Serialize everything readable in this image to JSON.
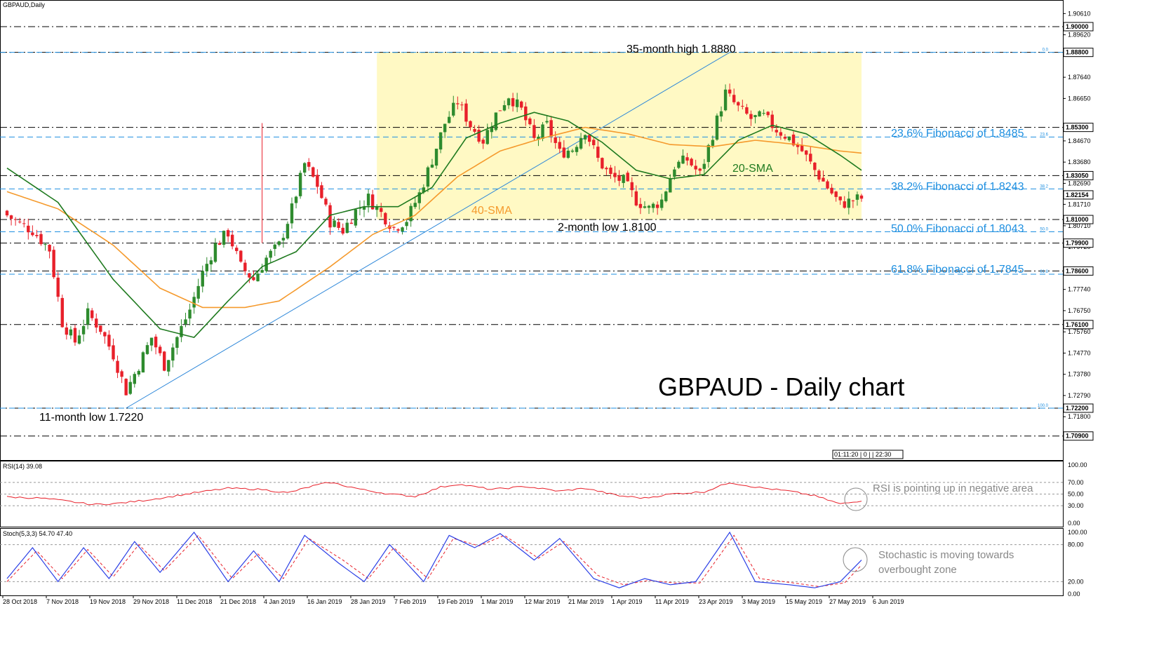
{
  "chart_data": [
    {
      "type": "candlestick",
      "title": "GBPAUD,Daily",
      "big_title": "GBPAUD - Daily chart",
      "ylim": [
        1.705,
        1.9106
      ],
      "y_ticks": [
        "1.90610",
        "1.89620",
        "1.87640",
        "1.86650",
        "1.84670",
        "1.83680",
        "1.82690",
        "1.81710",
        "1.80710",
        "1.79720",
        "1.77740",
        "1.76750",
        "1.75760",
        "1.74770",
        "1.73780",
        "1.72790",
        "1.71800"
      ],
      "highlighted_levels": [
        {
          "value": 1.9,
          "label": "1.90000",
          "style": "dashdot"
        },
        {
          "value": 1.888,
          "label": "1.88800",
          "style": "dashdot"
        },
        {
          "value": 1.853,
          "label": "1.85300",
          "style": "dashdot"
        },
        {
          "value": 1.8305,
          "label": "1.83050",
          "style": "dashdot"
        },
        {
          "value": 1.8215,
          "label": "1.82154",
          "style": "none"
        },
        {
          "value": 1.81,
          "label": "1.81000",
          "style": "dashdot"
        },
        {
          "value": 1.799,
          "label": "1.79900",
          "style": "dashdot"
        },
        {
          "value": 1.786,
          "label": "1.78600",
          "style": "dashdot"
        },
        {
          "value": 1.761,
          "label": "1.76100",
          "style": "dashdot"
        },
        {
          "value": 1.722,
          "label": "1.72200",
          "style": "dashdot"
        },
        {
          "value": 1.709,
          "label": "1.70900",
          "style": "dashdot"
        }
      ],
      "fibonacci": [
        {
          "value": 1.888,
          "pct": "0.0",
          "label": ""
        },
        {
          "value": 1.8485,
          "pct": "23.6",
          "label": "23.6% Fibonacci of 1.8485"
        },
        {
          "value": 1.8243,
          "pct": "38.2",
          "label": "38.2% Fibonacci of 1.8243"
        },
        {
          "value": 1.8043,
          "pct": "50.0",
          "label": "50.0% Fibonacci of 1.8043"
        },
        {
          "value": 1.7845,
          "pct": "61.8",
          "label": "61.8% Fibonacci of 1.7845"
        },
        {
          "value": 1.722,
          "pct": "100.0",
          "label": ""
        }
      ],
      "x_labels": [
        "28 Oct 2018",
        "7 Nov 2018",
        "19 Nov 2018",
        "29 Nov 2018",
        "11 Dec 2018",
        "21 Dec 2018",
        "4 Jan 2019",
        "16 Jan 2019",
        "28 Jan 2019",
        "7 Feb 2019",
        "19 Feb 2019",
        "1 Mar 2019",
        "12 Mar 2019",
        "21 Mar 2019",
        "1 Apr 2019",
        "11 Apr 2019",
        "23 Apr 2019",
        "3 May 2019",
        "15 May 2019",
        "27 May 2019",
        "6 Jun 2019"
      ],
      "annotations": [
        "35-month high 1.8880",
        "2-month low 1.8100",
        "11-month low 1.7220",
        "20-SMA",
        "40-SMA"
      ],
      "close_anchors": [
        [
          0,
          1.812
        ],
        [
          3,
          1.808
        ],
        [
          6,
          1.805
        ],
        [
          10,
          1.796
        ],
        [
          13,
          1.762
        ],
        [
          16,
          1.753
        ],
        [
          19,
          1.766
        ],
        [
          22,
          1.759
        ],
        [
          25,
          1.747
        ],
        [
          28,
          1.73
        ],
        [
          31,
          1.742
        ],
        [
          34,
          1.755
        ],
        [
          37,
          1.742
        ],
        [
          40,
          1.755
        ],
        [
          43,
          1.768
        ],
        [
          46,
          1.785
        ],
        [
          49,
          1.798
        ],
        [
          52,
          1.804
        ],
        [
          55,
          1.788
        ],
        [
          58,
          1.782
        ],
        [
          61,
          1.792
        ],
        [
          64,
          1.798
        ],
        [
          67,
          1.815
        ],
        [
          70,
          1.836
        ],
        [
          73,
          1.826
        ],
        [
          76,
          1.809
        ],
        [
          79,
          1.805
        ],
        [
          82,
          1.814
        ],
        [
          85,
          1.82
        ],
        [
          88,
          1.813
        ],
        [
          91,
          1.806
        ],
        [
          94,
          1.81
        ],
        [
          97,
          1.822
        ],
        [
          100,
          1.838
        ],
        [
          103,
          1.855
        ],
        [
          106,
          1.865
        ],
        [
          109,
          1.854
        ],
        [
          112,
          1.847
        ],
        [
          115,
          1.859
        ],
        [
          118,
          1.868
        ],
        [
          121,
          1.861
        ],
        [
          124,
          1.847
        ],
        [
          127,
          1.854
        ],
        [
          130,
          1.841
        ],
        [
          133,
          1.843
        ],
        [
          136,
          1.852
        ],
        [
          139,
          1.838
        ],
        [
          142,
          1.83
        ],
        [
          145,
          1.828
        ],
        [
          148,
          1.819
        ],
        [
          151,
          1.815
        ],
        [
          154,
          1.819
        ],
        [
          157,
          1.835
        ],
        [
          160,
          1.838
        ],
        [
          163,
          1.831
        ],
        [
          166,
          1.85
        ],
        [
          169,
          1.869
        ],
        [
          172,
          1.862
        ],
        [
          175,
          1.857
        ],
        [
          178,
          1.858
        ],
        [
          181,
          1.852
        ],
        [
          184,
          1.848
        ],
        [
          187,
          1.842
        ],
        [
          190,
          1.833
        ],
        [
          193,
          1.825
        ],
        [
          196,
          1.817
        ],
        [
          199,
          1.819
        ],
        [
          201,
          1.82
        ]
      ],
      "candle_count": 202,
      "sma20_anchors": [
        [
          0,
          1.834
        ],
        [
          12,
          1.818
        ],
        [
          25,
          1.782
        ],
        [
          36,
          1.759
        ],
        [
          44,
          1.755
        ],
        [
          52,
          1.772
        ],
        [
          60,
          1.788
        ],
        [
          68,
          1.795
        ],
        [
          76,
          1.812
        ],
        [
          84,
          1.816
        ],
        [
          92,
          1.816
        ],
        [
          100,
          1.825
        ],
        [
          108,
          1.848
        ],
        [
          116,
          1.855
        ],
        [
          124,
          1.86
        ],
        [
          132,
          1.856
        ],
        [
          140,
          1.846
        ],
        [
          148,
          1.833
        ],
        [
          156,
          1.829
        ],
        [
          164,
          1.831
        ],
        [
          172,
          1.847
        ],
        [
          180,
          1.854
        ],
        [
          188,
          1.85
        ],
        [
          196,
          1.84
        ],
        [
          201,
          1.833
        ]
      ],
      "sma40_anchors": [
        [
          0,
          1.823
        ],
        [
          12,
          1.815
        ],
        [
          25,
          1.798
        ],
        [
          36,
          1.778
        ],
        [
          46,
          1.769
        ],
        [
          56,
          1.769
        ],
        [
          64,
          1.772
        ],
        [
          76,
          1.788
        ],
        [
          86,
          1.803
        ],
        [
          96,
          1.812
        ],
        [
          106,
          1.83
        ],
        [
          116,
          1.842
        ],
        [
          126,
          1.848
        ],
        [
          136,
          1.853
        ],
        [
          146,
          1.85
        ],
        [
          156,
          1.845
        ],
        [
          166,
          1.844
        ],
        [
          176,
          1.847
        ],
        [
          186,
          1.845
        ],
        [
          196,
          1.842
        ],
        [
          201,
          1.841
        ]
      ],
      "trendline": {
        "from": [
          28,
          1.722
        ],
        "to": [
          170,
          1.888
        ]
      },
      "rectangle": {
        "x0": 87,
        "x1": 201,
        "y0": 1.81,
        "y1": 1.888
      },
      "time_box": "01:11:20 | 0 | | 22:30"
    },
    {
      "type": "line",
      "title": "RSI(14) 39.08",
      "ylim": [
        0,
        100
      ],
      "y_ticks": [
        "100.00",
        "70.00",
        "50.00",
        "30.00",
        "0.00"
      ],
      "series": [
        {
          "name": "RSI(14)",
          "anchors": [
            [
              0,
              45
            ],
            [
              8,
              43
            ],
            [
              14,
              38
            ],
            [
              20,
              32
            ],
            [
              26,
              34
            ],
            [
              32,
              39
            ],
            [
              38,
              45
            ],
            [
              44,
              52
            ],
            [
              52,
              60
            ],
            [
              60,
              58
            ],
            [
              66,
              52
            ],
            [
              72,
              64
            ],
            [
              76,
              70
            ],
            [
              84,
              57
            ],
            [
              90,
              50
            ],
            [
              96,
              46
            ],
            [
              102,
              62
            ],
            [
              106,
              67
            ],
            [
              114,
              58
            ],
            [
              122,
              63
            ],
            [
              130,
              55
            ],
            [
              136,
              60
            ],
            [
              144,
              47
            ],
            [
              150,
              43
            ],
            [
              156,
              50
            ],
            [
              164,
              54
            ],
            [
              170,
              70
            ],
            [
              176,
              62
            ],
            [
              184,
              55
            ],
            [
              190,
              47
            ],
            [
              196,
              33
            ],
            [
              199,
              36
            ],
            [
              201,
              39
            ]
          ]
        }
      ],
      "annotation": "RSI is pointing up in negative area"
    },
    {
      "type": "line",
      "title": "Stoch(5,3,3) 54.70 47.40",
      "ylim": [
        0,
        100
      ],
      "y_ticks": [
        "100.00",
        "80.00",
        "20.00",
        "0.00"
      ],
      "series": [
        {
          "name": "main",
          "anchors": [
            [
              0,
              25
            ],
            [
              6,
              75
            ],
            [
              12,
              20
            ],
            [
              18,
              75
            ],
            [
              24,
              25
            ],
            [
              30,
              85
            ],
            [
              36,
              35
            ],
            [
              44,
              100
            ],
            [
              52,
              20
            ],
            [
              58,
              70
            ],
            [
              64,
              20
            ],
            [
              70,
              95
            ],
            [
              78,
              50
            ],
            [
              84,
              20
            ],
            [
              90,
              80
            ],
            [
              98,
              20
            ],
            [
              104,
              95
            ],
            [
              110,
              75
            ],
            [
              116,
              98
            ],
            [
              124,
              55
            ],
            [
              130,
              90
            ],
            [
              138,
              25
            ],
            [
              144,
              10
            ],
            [
              150,
              25
            ],
            [
              156,
              15
            ],
            [
              162,
              20
            ],
            [
              170,
              100
            ],
            [
              176,
              20
            ],
            [
              184,
              15
            ],
            [
              190,
              10
            ],
            [
              196,
              20
            ],
            [
              201,
              55
            ]
          ]
        },
        {
          "name": "signal",
          "anchors": [
            [
              0,
              20
            ],
            [
              7,
              70
            ],
            [
              13,
              25
            ],
            [
              19,
              72
            ],
            [
              25,
              28
            ],
            [
              31,
              80
            ],
            [
              37,
              38
            ],
            [
              45,
              95
            ],
            [
              53,
              25
            ],
            [
              59,
              65
            ],
            [
              65,
              25
            ],
            [
              71,
              90
            ],
            [
              79,
              55
            ],
            [
              85,
              25
            ],
            [
              91,
              75
            ],
            [
              99,
              25
            ],
            [
              105,
              90
            ],
            [
              111,
              78
            ],
            [
              117,
              95
            ],
            [
              125,
              58
            ],
            [
              131,
              85
            ],
            [
              139,
              30
            ],
            [
              145,
              15
            ],
            [
              151,
              22
            ],
            [
              157,
              18
            ],
            [
              163,
              18
            ],
            [
              171,
              95
            ],
            [
              177,
              25
            ],
            [
              185,
              18
            ],
            [
              191,
              12
            ],
            [
              197,
              18
            ],
            [
              201,
              47
            ]
          ]
        }
      ],
      "annotation": "Stochastic is moving towards overbought zone"
    }
  ],
  "colors": {
    "bull": "#2e8b2e",
    "bear": "#e8202a",
    "sma20": "#1f7a1f",
    "sma40": "#f59a2d",
    "fib": "#1e8fe0",
    "trend": "#2b86d9",
    "rect": "#fff9c4",
    "rsi": "#e8202a",
    "stoch_main": "#2b3fe6",
    "stoch_signal": "#e8202a",
    "annotation_gray": "#888888"
  }
}
